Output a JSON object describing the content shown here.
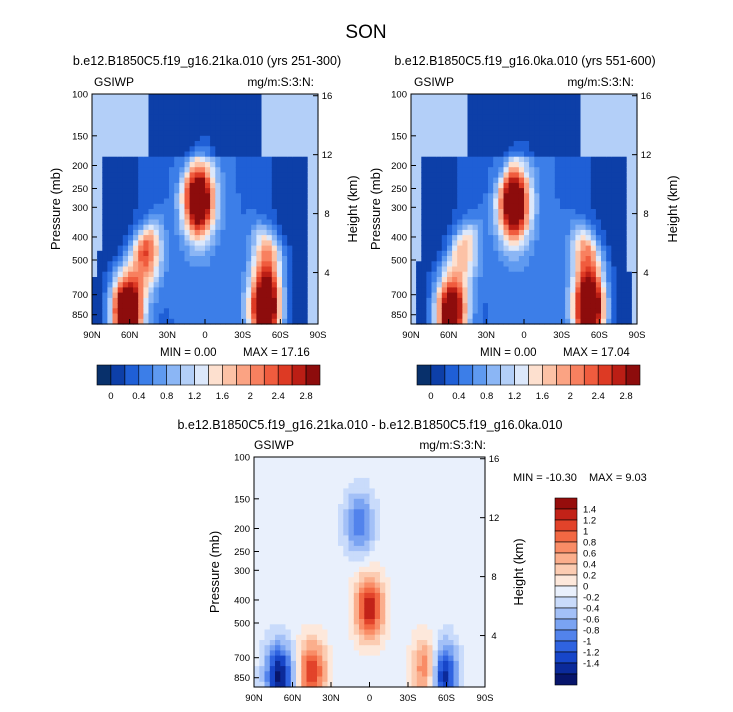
{
  "figure": {
    "title": "SON"
  },
  "colors": {
    "abs_levels": [
      "#08306b",
      "#0d3fa8",
      "#1f5fd6",
      "#3c7ee8",
      "#5f9af0",
      "#8bb6f5",
      "#b3cff8",
      "#dce8fb",
      "#fde0cf",
      "#fcc2a6",
      "#fba383",
      "#f8805f",
      "#f05c3e",
      "#dd3a24",
      "#bb1e15",
      "#8d0c0c"
    ],
    "diff_levels": [
      "#07156b",
      "#0b2a9a",
      "#1746c9",
      "#2f63e0",
      "#5283ec",
      "#7aa3f2",
      "#a3c0f7",
      "#c9dbfb",
      "#e9f0fc",
      "#fde8db",
      "#fcccb2",
      "#fbae8c",
      "#f98c66",
      "#f26843",
      "#e2432a",
      "#c22218",
      "#960d0c"
    ]
  },
  "chart_data": [
    {
      "type": "heatmap",
      "title": "b.e12.B1850C5.f19_g16.21ka.010 (yrs 251-300)",
      "left_string": "GSIWP",
      "right_string": "mg/m:S:3:N:",
      "ylabel": "Pressure (mb)",
      "ylabel_right": "Height (km)",
      "x_tick_labels": [
        "90N",
        "60N",
        "30N",
        "0",
        "30S",
        "60S",
        "90S"
      ],
      "y_tick_labels": [
        "100",
        "150",
        "200",
        "250",
        "300",
        "400",
        "500",
        "700",
        "850"
      ],
      "y_right_tick_labels": [
        "16",
        "12",
        "8",
        "4"
      ],
      "min_label": "MIN =  0.00",
      "max_label": "MAX =  17.16",
      "colorbar_labels": [
        "0",
        "0.4",
        "0.8",
        "1.2",
        "1.6",
        "2",
        "2.4",
        "2.8"
      ],
      "features": [
        {
          "lat": 62,
          "p": 820,
          "amp": 4.0
        },
        {
          "lat": 47,
          "p": 460,
          "amp": 2.1
        },
        {
          "lat": 5,
          "p": 280,
          "amp": 3.4
        },
        {
          "lat": -48,
          "p": 800,
          "amp": 3.8
        },
        {
          "lat": -50,
          "p": 460,
          "amp": 1.5
        }
      ]
    },
    {
      "type": "heatmap",
      "title": "b.e12.B1850C5.f19_g16.0ka.010 (yrs 551-600)",
      "left_string": "GSIWP",
      "right_string": "mg/m:S:3:N:",
      "ylabel": "Pressure (mb)",
      "ylabel_right": "Height (km)",
      "x_tick_labels": [
        "90N",
        "60N",
        "30N",
        "0",
        "30S",
        "60S",
        "90S"
      ],
      "y_tick_labels": [
        "100",
        "150",
        "200",
        "250",
        "300",
        "400",
        "500",
        "700",
        "850"
      ],
      "y_right_tick_labels": [
        "16",
        "12",
        "8",
        "4"
      ],
      "min_label": "MIN =  0.00",
      "max_label": "MAX =  17.04",
      "colorbar_labels": [
        "0",
        "0.4",
        "0.8",
        "1.2",
        "1.6",
        "2",
        "2.4",
        "2.8"
      ],
      "features": [
        {
          "lat": 58,
          "p": 830,
          "amp": 3.5
        },
        {
          "lat": 48,
          "p": 440,
          "amp": 1.5
        },
        {
          "lat": 8,
          "p": 290,
          "amp": 3.4
        },
        {
          "lat": -52,
          "p": 800,
          "amp": 3.9
        },
        {
          "lat": -50,
          "p": 450,
          "amp": 1.6
        }
      ]
    },
    {
      "type": "heatmap",
      "title": "b.e12.B1850C5.f19_g16.21ka.010 - b.e12.B1850C5.f19_g16.0ka.010",
      "left_string": "GSIWP",
      "right_string": "mg/m:S:3:N:",
      "ylabel": "Pressure (mb)",
      "ylabel_right": "Height (km)",
      "x_tick_labels": [
        "90N",
        "60N",
        "30N",
        "0",
        "30S",
        "60S",
        "90S"
      ],
      "y_tick_labels": [
        "100",
        "150",
        "200",
        "250",
        "300",
        "400",
        "500",
        "700",
        "850"
      ],
      "y_right_tick_labels": [
        "16",
        "12",
        "8",
        "4"
      ],
      "min_label": "MIN = -10.30",
      "max_label": "MAX =  9.03",
      "colorbar_labels": [
        "1.4",
        "1.2",
        "1",
        "0.8",
        "0.6",
        "0.4",
        "0.2",
        "0",
        "-0.2",
        "-0.4",
        "-0.6",
        "-0.8",
        "-1",
        "-1.2",
        "-1.4"
      ],
      "features": [
        {
          "lat": 0,
          "p": 430,
          "amp": 1.5
        },
        {
          "lat": 45,
          "p": 800,
          "amp": 1.3
        },
        {
          "lat": -45,
          "p": 780,
          "amp": 1.1
        },
        {
          "lat": 70,
          "p": 830,
          "amp": -1.6
        },
        {
          "lat": -57,
          "p": 820,
          "amp": -1.6
        },
        {
          "lat": 8,
          "p": 190,
          "amp": -0.9
        }
      ]
    }
  ]
}
